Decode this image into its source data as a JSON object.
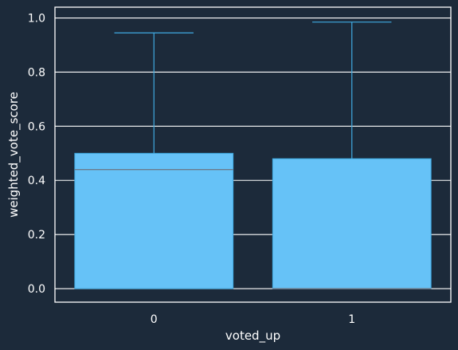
{
  "chart_data": {
    "type": "boxplot",
    "xlabel": "voted_up",
    "ylabel": "weighted_vote_score",
    "categories": [
      "0",
      "1"
    ],
    "boxes": [
      {
        "category": "0",
        "whisker_low": 0.0,
        "q1": 0.0,
        "median": 0.44,
        "q3": 0.5,
        "whisker_high": 0.945
      },
      {
        "category": "1",
        "whisker_low": 0.0,
        "q1": 0.0,
        "median": 0.0,
        "q3": 0.48,
        "whisker_high": 0.985
      }
    ],
    "ylim": [
      -0.05,
      1.04
    ],
    "yticks": [
      0.0,
      0.2,
      0.4,
      0.6,
      0.8,
      1.0
    ],
    "ytick_labels": [
      "0.0",
      "0.2",
      "0.4",
      "0.6",
      "0.8",
      "1.0"
    ],
    "grid": true,
    "colors": {
      "background": "#1c2a3a",
      "box_fill": "#66c2f7",
      "whisker": "#3fa9e0",
      "median": "#6b7b8c",
      "grid": "#ffffff",
      "text": "#ffffff"
    }
  }
}
